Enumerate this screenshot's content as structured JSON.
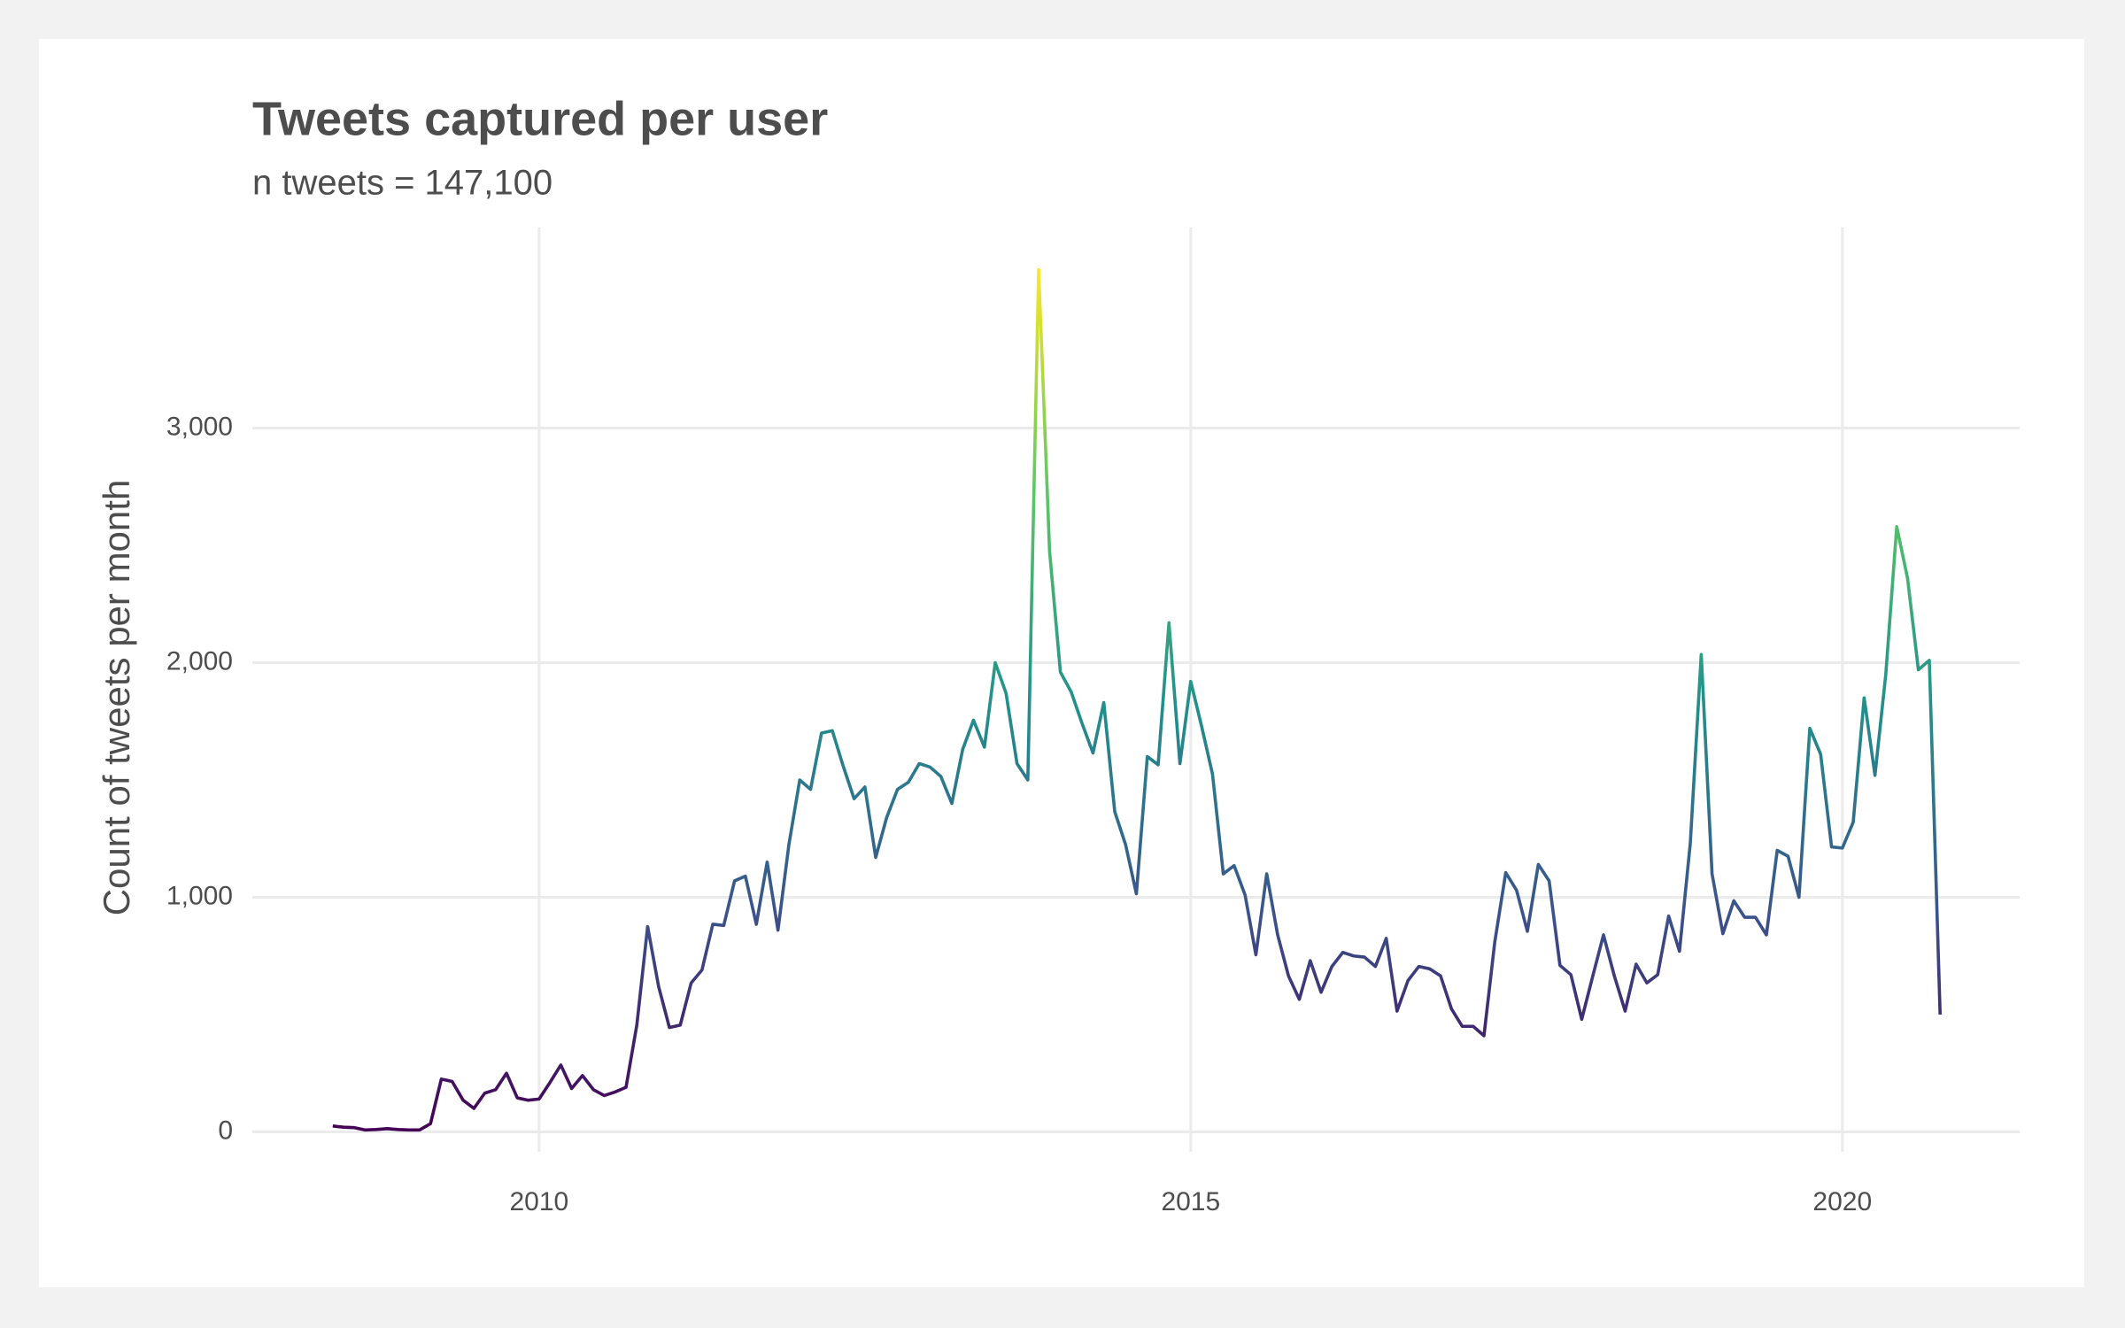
{
  "chart_data": {
    "type": "line",
    "title": "Tweets captured per user",
    "subtitle": "n tweets = 147,100",
    "y_label": "Count of tweets per month",
    "x": [
      2008.417,
      2008.5,
      2008.583,
      2008.667,
      2008.75,
      2008.833,
      2008.917,
      2009,
      2009.083,
      2009.167,
      2009.25,
      2009.333,
      2009.417,
      2009.5,
      2009.583,
      2009.667,
      2009.75,
      2009.833,
      2009.917,
      2010,
      2010.083,
      2010.167,
      2010.25,
      2010.333,
      2010.417,
      2010.5,
      2010.583,
      2010.667,
      2010.75,
      2010.833,
      2010.917,
      2011,
      2011.083,
      2011.167,
      2011.25,
      2011.333,
      2011.417,
      2011.5,
      2011.583,
      2011.667,
      2011.75,
      2011.833,
      2011.917,
      2012,
      2012.083,
      2012.167,
      2012.25,
      2012.333,
      2012.417,
      2012.5,
      2012.583,
      2012.667,
      2012.75,
      2012.833,
      2012.917,
      2013,
      2013.083,
      2013.167,
      2013.25,
      2013.333,
      2013.417,
      2013.5,
      2013.583,
      2013.667,
      2013.75,
      2013.833,
      2013.917,
      2014,
      2014.083,
      2014.167,
      2014.25,
      2014.333,
      2014.417,
      2014.5,
      2014.583,
      2014.667,
      2014.75,
      2014.833,
      2014.917,
      2015,
      2015.083,
      2015.167,
      2015.25,
      2015.333,
      2015.417,
      2015.5,
      2015.583,
      2015.667,
      2015.75,
      2015.833,
      2015.917,
      2016,
      2016.083,
      2016.167,
      2016.25,
      2016.333,
      2016.417,
      2016.5,
      2016.583,
      2016.667,
      2016.75,
      2016.833,
      2016.917,
      2017,
      2017.083,
      2017.167,
      2017.25,
      2017.333,
      2017.417,
      2017.5,
      2017.583,
      2017.667,
      2017.75,
      2017.833,
      2017.917,
      2018,
      2018.083,
      2018.167,
      2018.25,
      2018.333,
      2018.417,
      2018.5,
      2018.583,
      2018.667,
      2018.75,
      2018.833,
      2018.917,
      2019,
      2019.083,
      2019.167,
      2019.25,
      2019.333,
      2019.417,
      2019.5,
      2019.583,
      2019.667,
      2019.75,
      2019.833,
      2019.917,
      2020,
      2020.083,
      2020.167,
      2020.25,
      2020.333,
      2020.417,
      2020.5,
      2020.583,
      2020.667,
      2020.75
    ],
    "values": [
      25,
      20,
      18,
      8,
      10,
      14,
      10,
      8,
      8,
      35,
      225,
      215,
      135,
      100,
      165,
      180,
      250,
      145,
      135,
      140,
      210,
      285,
      185,
      240,
      180,
      155,
      170,
      190,
      455,
      875,
      620,
      445,
      455,
      635,
      690,
      885,
      880,
      1070,
      1090,
      885,
      1150,
      860,
      1225,
      1500,
      1460,
      1700,
      1710,
      1560,
      1420,
      1470,
      1170,
      1340,
      1460,
      1490,
      1570,
      1555,
      1515,
      1400,
      1630,
      1755,
      1640,
      2000,
      1870,
      1570,
      1500,
      3675,
      2475,
      1960,
      1875,
      1740,
      1615,
      1830,
      1365,
      1225,
      1015,
      1600,
      1565,
      2170,
      1570,
      1920,
      1730,
      1525,
      1100,
      1135,
      1010,
      755,
      1100,
      840,
      665,
      565,
      730,
      595,
      705,
      765,
      750,
      745,
      705,
      825,
      515,
      645,
      705,
      695,
      665,
      525,
      450,
      450,
      410,
      810,
      1105,
      1030,
      855,
      1140,
      1070,
      710,
      670,
      480,
      660,
      840,
      665,
      515,
      715,
      635,
      670,
      920,
      770,
      1230,
      2035,
      1100,
      845,
      985,
      915,
      915,
      840,
      1200,
      1175,
      1000,
      1720,
      1610,
      1215,
      1210,
      1320,
      1850,
      1520,
      1950,
      2580,
      2360,
      1970,
      2010,
      500
    ],
    "color_scale": [
      "#440154",
      "#3b528b",
      "#21918c",
      "#5ec962",
      "#fde725"
    ],
    "xlim": [
      2007.8,
      2021.36
    ],
    "ylim": [
      -85,
      3855
    ],
    "xticks": [
      2010,
      2015,
      2020
    ],
    "yticks": [
      0,
      {
        "value": 1000,
        "label": "1,000"
      },
      {
        "value": 2000,
        "label": "2,000"
      },
      {
        "value": 3000,
        "label": "3,000"
      }
    ],
    "grid": true
  }
}
